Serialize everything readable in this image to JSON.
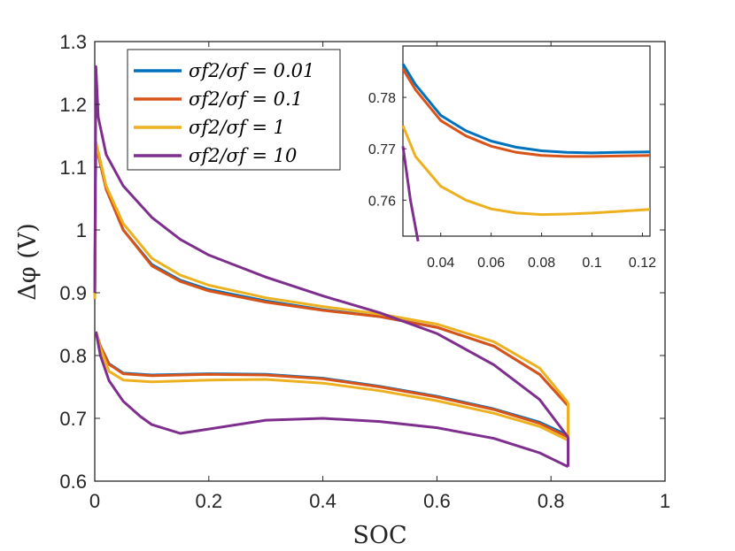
{
  "chart_data": {
    "type": "line",
    "title": "",
    "xlabel": "SOC",
    "ylabel": "Δφ (V)",
    "xlim": [
      0,
      1
    ],
    "ylim": [
      0.6,
      1.3
    ],
    "xticks": [
      "0",
      "0.2",
      "0.4",
      "0.6",
      "0.8",
      "1"
    ],
    "yticks": [
      "0.6",
      "0.7",
      "0.8",
      "0.9",
      "1",
      "1.1",
      "1.2",
      "1.3"
    ],
    "legend_position": "top-left",
    "series": [
      {
        "name": "σf2/σf = 0.01",
        "color": "#0072BD",
        "charge": [
          [
            0.0,
            0.89
          ],
          [
            0.002,
            1.13
          ],
          [
            0.006,
            1.12
          ],
          [
            0.02,
            1.065
          ],
          [
            0.05,
            1.0
          ],
          [
            0.1,
            0.945
          ],
          [
            0.15,
            0.92
          ],
          [
            0.2,
            0.905
          ],
          [
            0.3,
            0.887
          ],
          [
            0.4,
            0.873
          ],
          [
            0.5,
            0.862
          ],
          [
            0.6,
            0.845
          ],
          [
            0.7,
            0.815
          ],
          [
            0.78,
            0.77
          ],
          [
            0.83,
            0.72
          ]
        ],
        "discharge": [
          [
            0.002,
            0.838
          ],
          [
            0.01,
            0.815
          ],
          [
            0.025,
            0.787
          ],
          [
            0.05,
            0.772
          ],
          [
            0.1,
            0.769
          ],
          [
            0.2,
            0.771
          ],
          [
            0.3,
            0.77
          ],
          [
            0.4,
            0.764
          ],
          [
            0.5,
            0.751
          ],
          [
            0.6,
            0.735
          ],
          [
            0.7,
            0.715
          ],
          [
            0.78,
            0.694
          ],
          [
            0.83,
            0.673
          ]
        ]
      },
      {
        "name": "σf2/σf = 0.1",
        "color": "#D95319",
        "charge": [
          [
            0.0,
            0.89
          ],
          [
            0.002,
            1.13
          ],
          [
            0.006,
            1.12
          ],
          [
            0.02,
            1.065
          ],
          [
            0.05,
            1.0
          ],
          [
            0.1,
            0.943
          ],
          [
            0.15,
            0.918
          ],
          [
            0.2,
            0.903
          ],
          [
            0.3,
            0.885
          ],
          [
            0.4,
            0.872
          ],
          [
            0.5,
            0.862
          ],
          [
            0.6,
            0.845
          ],
          [
            0.7,
            0.815
          ],
          [
            0.78,
            0.77
          ],
          [
            0.83,
            0.72
          ]
        ],
        "discharge": [
          [
            0.002,
            0.838
          ],
          [
            0.01,
            0.815
          ],
          [
            0.025,
            0.786
          ],
          [
            0.05,
            0.771
          ],
          [
            0.1,
            0.768
          ],
          [
            0.2,
            0.77
          ],
          [
            0.3,
            0.769
          ],
          [
            0.4,
            0.763
          ],
          [
            0.5,
            0.75
          ],
          [
            0.6,
            0.734
          ],
          [
            0.7,
            0.714
          ],
          [
            0.78,
            0.692
          ],
          [
            0.83,
            0.67
          ]
        ]
      },
      {
        "name": "σf2/σf = 1",
        "color": "#EDB120",
        "charge": [
          [
            0.0,
            0.89
          ],
          [
            0.002,
            1.14
          ],
          [
            0.006,
            1.125
          ],
          [
            0.02,
            1.07
          ],
          [
            0.05,
            1.01
          ],
          [
            0.1,
            0.955
          ],
          [
            0.15,
            0.928
          ],
          [
            0.2,
            0.912
          ],
          [
            0.3,
            0.892
          ],
          [
            0.4,
            0.878
          ],
          [
            0.5,
            0.866
          ],
          [
            0.6,
            0.85
          ],
          [
            0.7,
            0.822
          ],
          [
            0.78,
            0.78
          ],
          [
            0.83,
            0.725
          ]
        ],
        "discharge": [
          [
            0.002,
            0.838
          ],
          [
            0.01,
            0.812
          ],
          [
            0.025,
            0.775
          ],
          [
            0.05,
            0.761
          ],
          [
            0.1,
            0.758
          ],
          [
            0.2,
            0.761
          ],
          [
            0.3,
            0.762
          ],
          [
            0.4,
            0.756
          ],
          [
            0.5,
            0.744
          ],
          [
            0.6,
            0.728
          ],
          [
            0.7,
            0.708
          ],
          [
            0.78,
            0.687
          ],
          [
            0.83,
            0.665
          ]
        ]
      },
      {
        "name": "σf2/σf = 10",
        "color": "#7E2F8E",
        "charge": [
          [
            0.0,
            0.9
          ],
          [
            0.002,
            1.26
          ],
          [
            0.006,
            1.18
          ],
          [
            0.02,
            1.12
          ],
          [
            0.05,
            1.07
          ],
          [
            0.1,
            1.02
          ],
          [
            0.15,
            0.985
          ],
          [
            0.2,
            0.96
          ],
          [
            0.3,
            0.925
          ],
          [
            0.4,
            0.895
          ],
          [
            0.5,
            0.868
          ],
          [
            0.6,
            0.835
          ],
          [
            0.7,
            0.785
          ],
          [
            0.78,
            0.73
          ],
          [
            0.83,
            0.67
          ]
        ],
        "discharge": [
          [
            0.002,
            0.838
          ],
          [
            0.01,
            0.8
          ],
          [
            0.025,
            0.76
          ],
          [
            0.05,
            0.727
          ],
          [
            0.08,
            0.703
          ],
          [
            0.1,
            0.69
          ],
          [
            0.15,
            0.676
          ],
          [
            0.2,
            0.683
          ],
          [
            0.3,
            0.697
          ],
          [
            0.4,
            0.7
          ],
          [
            0.5,
            0.695
          ],
          [
            0.6,
            0.685
          ],
          [
            0.7,
            0.668
          ],
          [
            0.78,
            0.645
          ],
          [
            0.83,
            0.623
          ]
        ]
      }
    ],
    "inset": {
      "xlim": [
        0.025,
        0.123
      ],
      "ylim": [
        0.753,
        0.79
      ],
      "xticks": [
        "0.04",
        "0.06",
        "0.08",
        "0.1",
        "0.12"
      ],
      "yticks": [
        "0.76",
        "0.77",
        "0.78"
      ],
      "series": [
        {
          "name": "σf2/σf = 0.01",
          "color": "#0072BD",
          "points": [
            [
              0.025,
              0.7865
            ],
            [
              0.03,
              0.7825
            ],
            [
              0.04,
              0.7765
            ],
            [
              0.05,
              0.7735
            ],
            [
              0.06,
              0.7715
            ],
            [
              0.07,
              0.7703
            ],
            [
              0.08,
              0.7696
            ],
            [
              0.09,
              0.7693
            ],
            [
              0.1,
              0.7692
            ],
            [
              0.11,
              0.7693
            ],
            [
              0.123,
              0.7694
            ]
          ]
        },
        {
          "name": "σf2/σf = 0.1",
          "color": "#D95319",
          "points": [
            [
              0.025,
              0.7855
            ],
            [
              0.03,
              0.7815
            ],
            [
              0.04,
              0.7755
            ],
            [
              0.05,
              0.7725
            ],
            [
              0.06,
              0.7705
            ],
            [
              0.07,
              0.7693
            ],
            [
              0.08,
              0.7687
            ],
            [
              0.09,
              0.7685
            ],
            [
              0.1,
              0.7685
            ],
            [
              0.11,
              0.7686
            ],
            [
              0.123,
              0.7687
            ]
          ]
        },
        {
          "name": "σf2/σf = 1",
          "color": "#EDB120",
          "points": [
            [
              0.025,
              0.7745
            ],
            [
              0.03,
              0.7685
            ],
            [
              0.04,
              0.7627
            ],
            [
              0.05,
              0.76
            ],
            [
              0.06,
              0.7583
            ],
            [
              0.07,
              0.7575
            ],
            [
              0.08,
              0.7572
            ],
            [
              0.09,
              0.7573
            ],
            [
              0.1,
              0.7575
            ],
            [
              0.11,
              0.7578
            ],
            [
              0.123,
              0.7582
            ]
          ]
        },
        {
          "name": "σf2/σf = 10",
          "color": "#7E2F8E",
          "points": [
            [
              0.025,
              0.7705
            ],
            [
              0.028,
              0.76
            ],
            [
              0.031,
              0.752
            ]
          ]
        }
      ]
    }
  }
}
